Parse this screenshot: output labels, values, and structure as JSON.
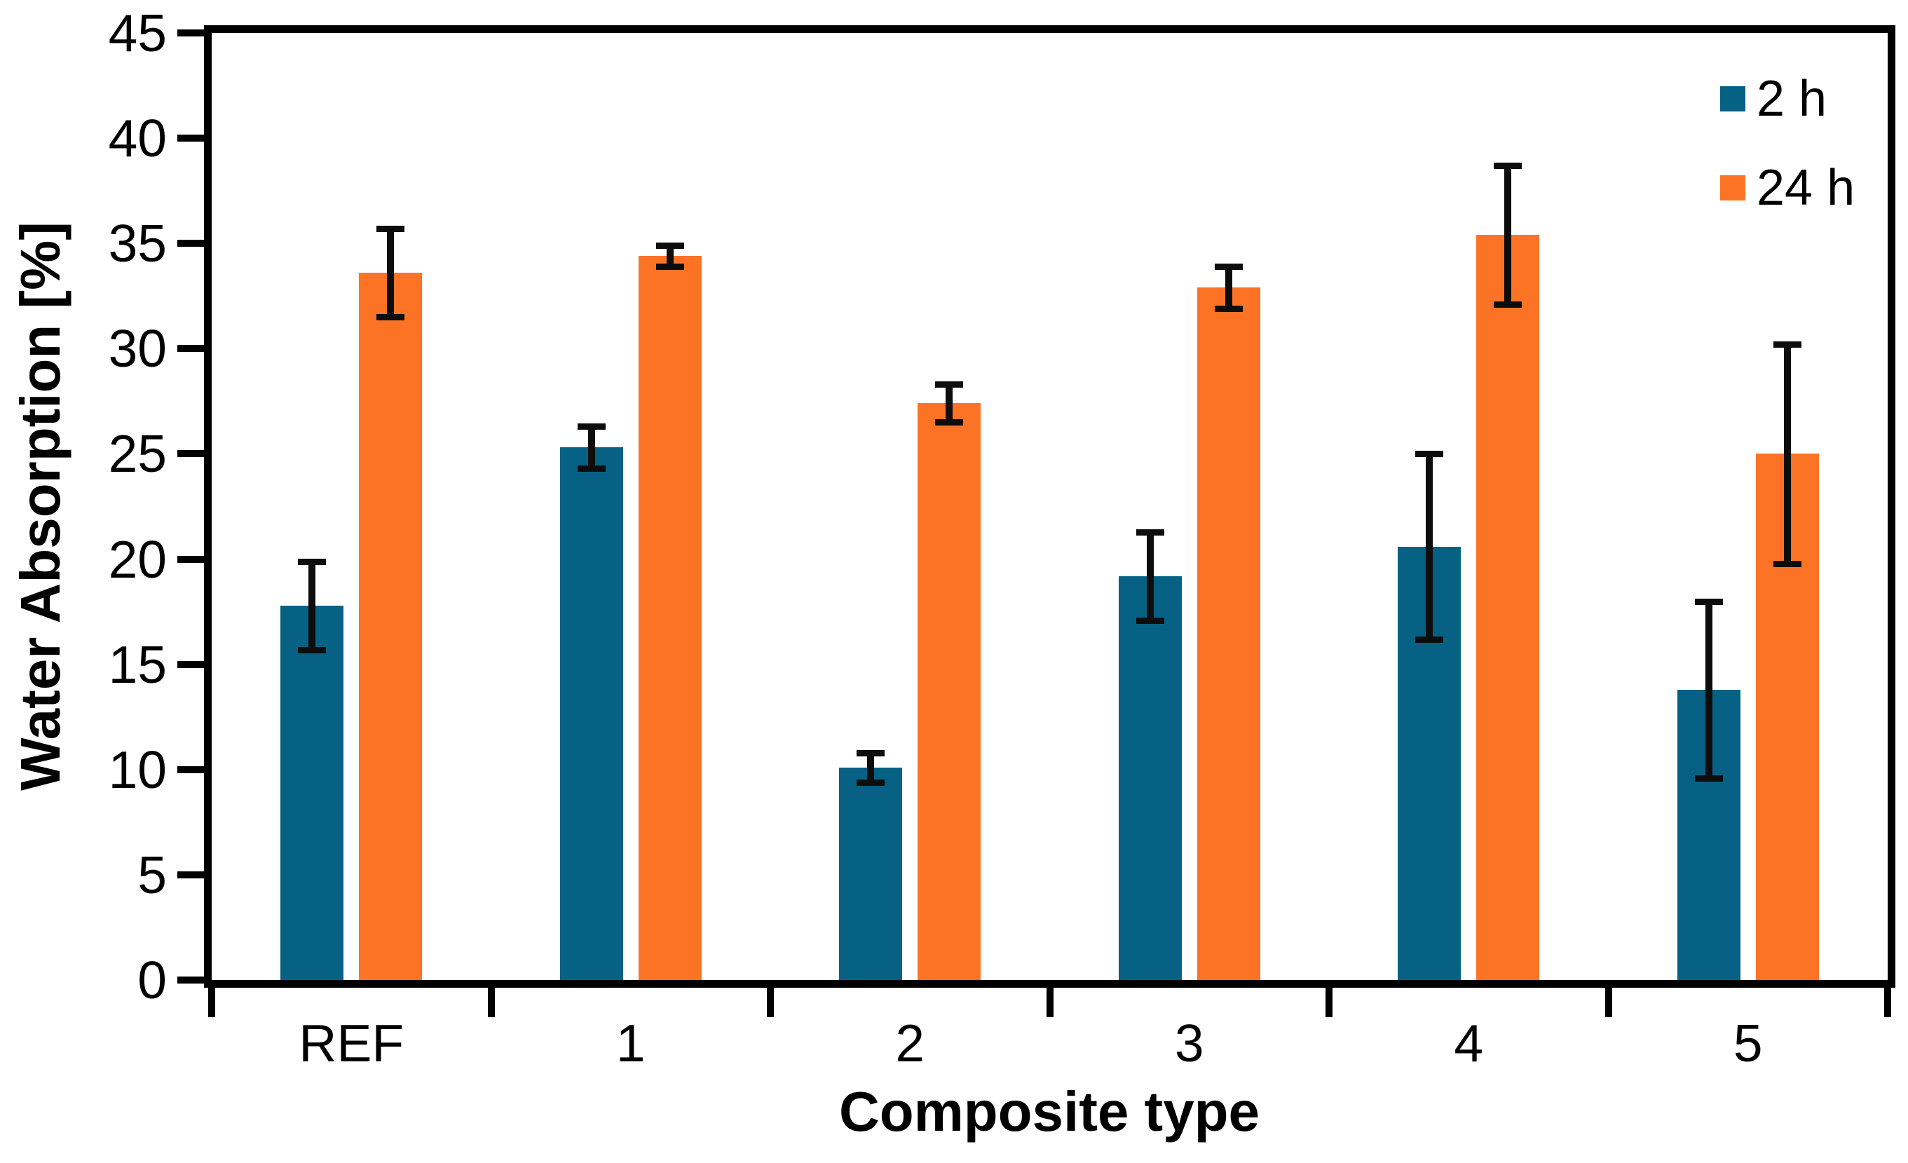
{
  "chart_data": {
    "type": "bar",
    "title": "",
    "xlabel": "Composite type",
    "ylabel": "Water Absorption [%]",
    "categories": [
      "REF",
      "1",
      "2",
      "3",
      "4",
      "5"
    ],
    "series": [
      {
        "name": "2 h",
        "color": "#076184",
        "values": [
          17.8,
          25.3,
          10.1,
          19.2,
          20.6,
          13.8
        ],
        "errors": [
          2.1,
          1.0,
          0.7,
          2.1,
          4.4,
          4.2
        ]
      },
      {
        "name": "24 h",
        "color": "#FD7326",
        "values": [
          33.6,
          34.4,
          27.4,
          32.9,
          35.4,
          25.0
        ],
        "errors": [
          2.1,
          0.5,
          0.9,
          1.0,
          3.3,
          5.2
        ]
      }
    ],
    "ylim": [
      0,
      45
    ],
    "y_ticks": [
      0,
      5,
      10,
      15,
      20,
      25,
      30,
      35,
      40,
      45
    ],
    "grid": false,
    "legend_position": "top-right",
    "error_bars": true
  }
}
